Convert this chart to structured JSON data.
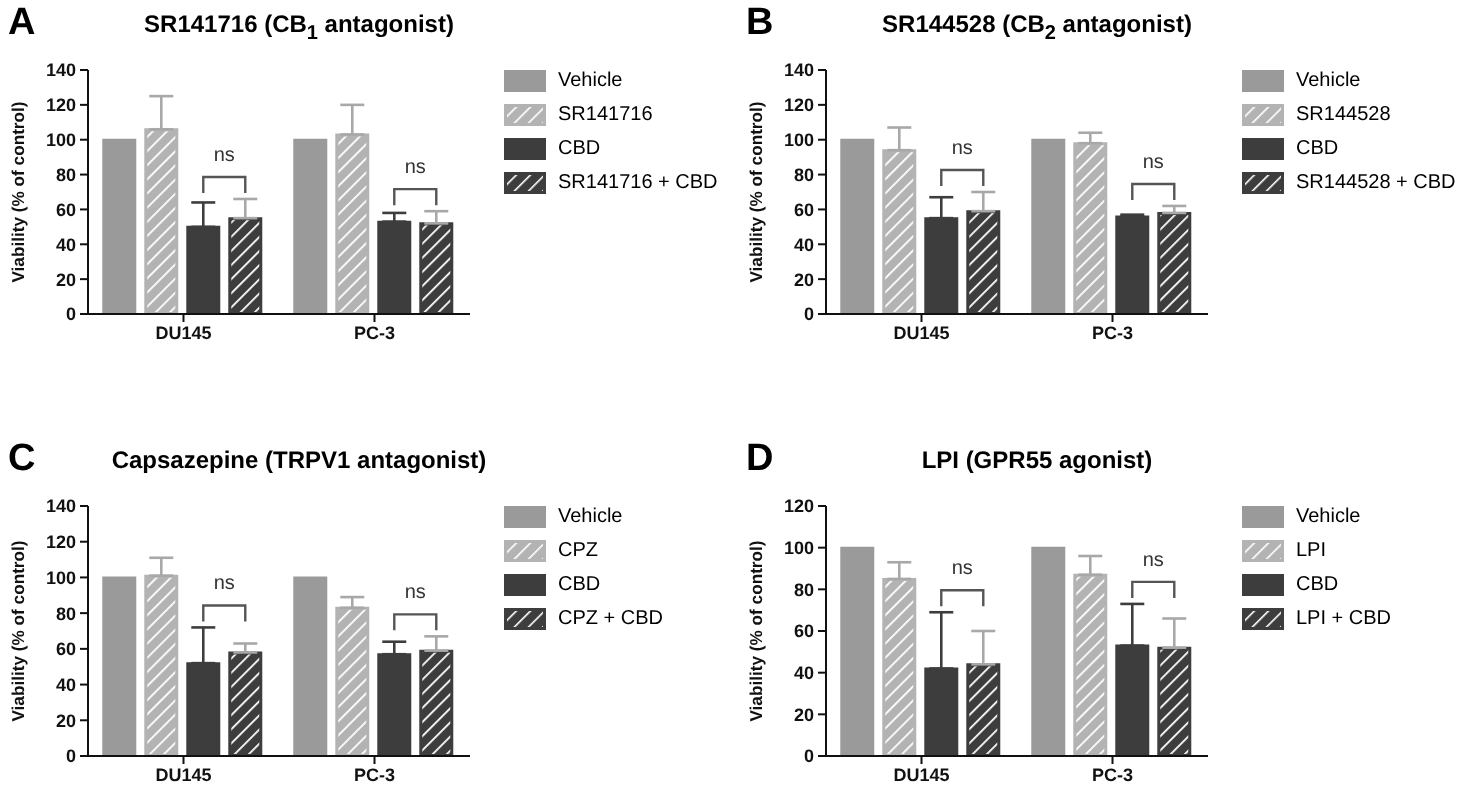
{
  "chart_data": [
    {
      "type": "bar",
      "title": "SR141716 (CB$_{1}$ antagonist)",
      "ylabel": "Viability (% of control)",
      "categories": [
        "DU145",
        "PC-3"
      ],
      "ylim": [
        0,
        140
      ],
      "yticks": [
        0,
        20,
        40,
        60,
        80,
        100,
        120,
        140
      ],
      "legend": "right",
      "annotations": [
        "A",
        "ns",
        "ns"
      ],
      "series": [
        {
          "name": "Vehicle",
          "color": "#9a9a9a",
          "values": [
            100,
            100
          ]
        },
        {
          "name": "SR141716",
          "color": "#b3b3b3",
          "values": [
            106,
            103
          ],
          "errors": [
            [
              106,
              125
            ],
            [
              103,
              120
            ]
          ]
        },
        {
          "name": "CBD",
          "color": "#3d3d3d",
          "values": [
            50,
            53
          ],
          "errors": [
            [
              50,
              64
            ],
            [
              53,
              58
            ]
          ]
        },
        {
          "name": "SR141716 + CBD",
          "color": "#3d3d3d",
          "values": [
            55,
            52
          ],
          "errors": [
            [
              55,
              66
            ],
            [
              52,
              59
            ]
          ]
        }
      ]
    },
    {
      "type": "bar",
      "title": "SR144528 (CB$_{2}$ antagonist)",
      "ylabel": "Viability (% of control)",
      "categories": [
        "DU145",
        "PC-3"
      ],
      "ylim": [
        0,
        140
      ],
      "yticks": [
        0,
        20,
        40,
        60,
        80,
        100,
        120,
        140
      ],
      "legend": "right",
      "annotations": [
        "B",
        "ns",
        "ns"
      ],
      "series": [
        {
          "name": "Vehicle",
          "color": "#9a9a9a",
          "values": [
            100,
            100
          ]
        },
        {
          "name": "SR144528",
          "color": "#b3b3b3",
          "values": [
            94,
            98
          ],
          "errors": [
            [
              94,
              107
            ],
            [
              98,
              104
            ]
          ]
        },
        {
          "name": "CBD",
          "color": "#3d3d3d",
          "values": [
            55,
            56
          ],
          "errors": [
            [
              55,
              67
            ],
            [
              56,
              57
            ]
          ]
        },
        {
          "name": "SR144528 + CBD",
          "color": "#3d3d3d",
          "values": [
            59,
            58
          ],
          "errors": [
            [
              59,
              70
            ],
            [
              58,
              62
            ]
          ]
        }
      ]
    },
    {
      "type": "bar",
      "title": "Capsazepine (TRPV1 antagonist)",
      "ylabel": "Viability (% of control)",
      "categories": [
        "DU145",
        "PC-3"
      ],
      "ylim": [
        0,
        140
      ],
      "yticks": [
        0,
        20,
        40,
        60,
        80,
        100,
        120,
        140
      ],
      "legend": "right",
      "annotations": [
        "C",
        "ns",
        "ns"
      ],
      "series": [
        {
          "name": "Vehicle",
          "color": "#9a9a9a",
          "values": [
            100,
            100
          ]
        },
        {
          "name": "CPZ",
          "color": "#b3b3b3",
          "values": [
            101,
            83
          ],
          "errors": [
            [
              101,
              111
            ],
            [
              83,
              89
            ]
          ]
        },
        {
          "name": "CBD",
          "color": "#3d3d3d",
          "values": [
            52,
            57
          ],
          "errors": [
            [
              52,
              72
            ],
            [
              57,
              64
            ]
          ]
        },
        {
          "name": "CPZ + CBD",
          "color": "#3d3d3d",
          "values": [
            58,
            59
          ],
          "errors": [
            [
              58,
              63
            ],
            [
              59,
              67
            ]
          ]
        }
      ]
    },
    {
      "type": "bar",
      "title": "LPI (GPR55 agonist)",
      "ylabel": "Viability (% of control)",
      "categories": [
        "DU145",
        "PC-3"
      ],
      "ylim": [
        0,
        120
      ],
      "yticks": [
        0,
        20,
        40,
        60,
        80,
        100,
        120
      ],
      "legend": "right",
      "annotations": [
        "D",
        "ns",
        "ns"
      ],
      "series": [
        {
          "name": "Vehicle",
          "color": "#9a9a9a",
          "values": [
            100,
            100
          ]
        },
        {
          "name": "LPI",
          "color": "#b3b3b3",
          "values": [
            85,
            87
          ],
          "errors": [
            [
              85,
              93
            ],
            [
              87,
              96
            ]
          ]
        },
        {
          "name": "CBD",
          "color": "#3d3d3d",
          "values": [
            42,
            53
          ],
          "errors": [
            [
              42,
              69
            ],
            [
              53,
              73
            ]
          ]
        },
        {
          "name": "LPI + CBD",
          "color": "#3d3d3d",
          "values": [
            44,
            52
          ],
          "errors": [
            [
              44,
              60
            ],
            [
              52,
              66
            ]
          ]
        }
      ]
    }
  ]
}
